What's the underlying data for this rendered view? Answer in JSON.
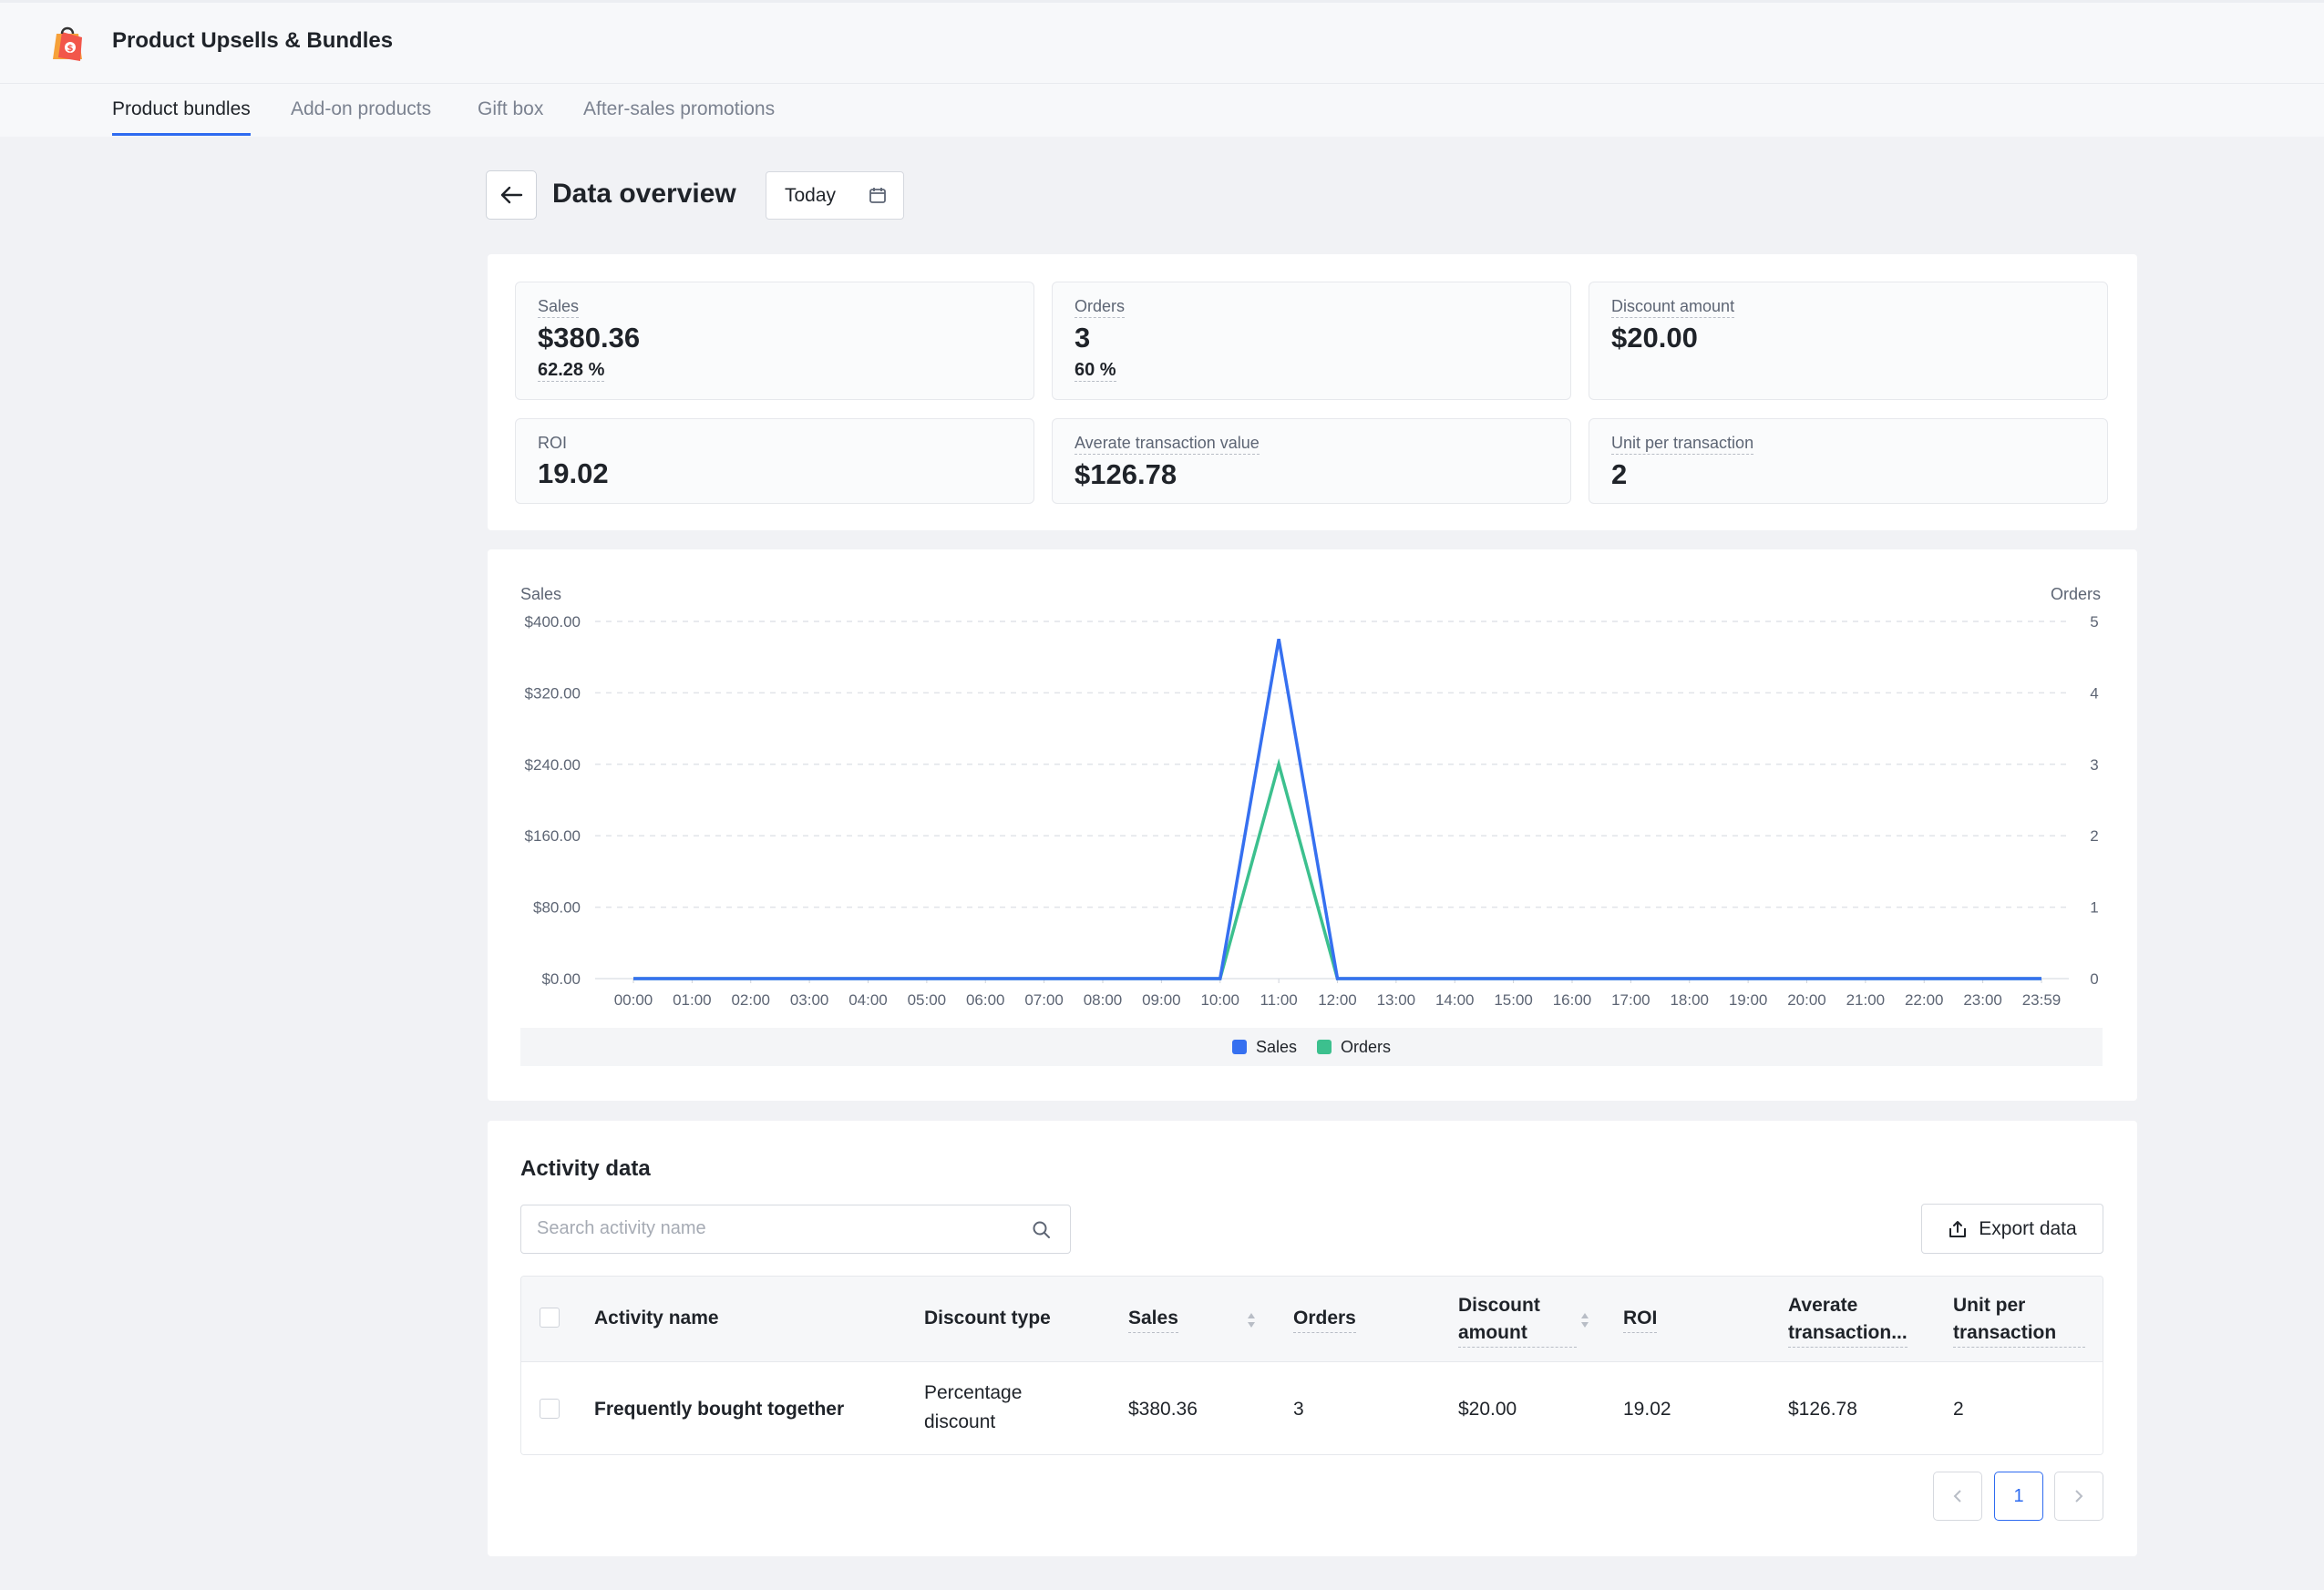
{
  "app": {
    "title": "Product Upsells & Bundles",
    "logo_icon": "shopping-bag-dollar-icon"
  },
  "tabs": [
    {
      "label": "Product bundles",
      "active": true
    },
    {
      "label": "Add-on products",
      "active": false
    },
    {
      "label": "Gift box",
      "active": false
    },
    {
      "label": "After-sales promotions",
      "active": false
    }
  ],
  "page": {
    "title": "Data overview",
    "date_range": "Today"
  },
  "metrics": {
    "sales": {
      "label": "Sales",
      "value": "$380.36",
      "pct": "62.28 %"
    },
    "orders": {
      "label": "Orders",
      "value": "3",
      "pct": "60 %"
    },
    "discount": {
      "label": "Discount amount",
      "value": "$20.00"
    },
    "roi": {
      "label": "ROI",
      "value": "19.02"
    },
    "atv": {
      "label": "Averate transaction value",
      "value": "$126.78"
    },
    "upt": {
      "label": "Unit per transaction",
      "value": "2"
    }
  },
  "chart_data": {
    "type": "line",
    "left_axis_title": "Sales",
    "right_axis_title": "Orders",
    "left_ticks": [
      "$400.00",
      "$320.00",
      "$240.00",
      "$160.00",
      "$80.00",
      "$0.00"
    ],
    "right_ticks": [
      "5",
      "4",
      "3",
      "2",
      "1",
      "0"
    ],
    "x": [
      "00:00",
      "01:00",
      "02:00",
      "03:00",
      "04:00",
      "05:00",
      "06:00",
      "07:00",
      "08:00",
      "09:00",
      "10:00",
      "11:00",
      "12:00",
      "13:00",
      "14:00",
      "15:00",
      "16:00",
      "17:00",
      "18:00",
      "19:00",
      "20:00",
      "21:00",
      "22:00",
      "23:00",
      "23:59"
    ],
    "ylim_left": [
      0,
      400
    ],
    "ylim_right": [
      0,
      5
    ],
    "grid": true,
    "legend_position": "bottom",
    "series": [
      {
        "name": "Sales",
        "axis": "left",
        "color": "#3670f0",
        "values": [
          0,
          0,
          0,
          0,
          0,
          0,
          0,
          0,
          0,
          0,
          0,
          380.36,
          0,
          0,
          0,
          0,
          0,
          0,
          0,
          0,
          0,
          0,
          0,
          0,
          0
        ]
      },
      {
        "name": "Orders",
        "axis": "right",
        "color": "#3cc08e",
        "values": [
          0,
          0,
          0,
          0,
          0,
          0,
          0,
          0,
          0,
          0,
          0,
          3,
          0,
          0,
          0,
          0,
          0,
          0,
          0,
          0,
          0,
          0,
          0,
          0,
          0
        ]
      }
    ]
  },
  "activity": {
    "title": "Activity data",
    "search_placeholder": "Search activity name",
    "export_label": "Export data",
    "columns": {
      "name": "Activity name",
      "discount_type": "Discount type",
      "sales": "Sales",
      "orders": "Orders",
      "discount_amount_1": "Discount",
      "discount_amount_2": "amount",
      "roi": "ROI",
      "atv_1": "Averate",
      "atv_2": "transaction...",
      "upt_1": "Unit per",
      "upt_2": "transaction"
    },
    "rows": [
      {
        "name": "Frequently bought together",
        "discount_type_1": "Percentage",
        "discount_type_2": "discount",
        "sales": "$380.36",
        "orders": "3",
        "discount_amount": "$20.00",
        "roi": "19.02",
        "atv": "$126.78",
        "upt": "2"
      }
    ],
    "pagination": {
      "current": "1"
    }
  }
}
